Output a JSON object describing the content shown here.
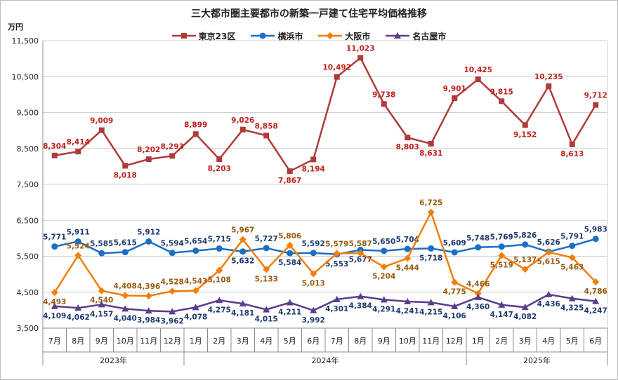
{
  "chart_data": {
    "type": "line",
    "title": "三大都市圏主要都市の新築一戸建て住宅平均価格推移",
    "ylabel": "万円",
    "xlabel": "",
    "ylim": [
      3500,
      11500
    ],
    "yticks": [
      "3,500",
      "4,500",
      "5,500",
      "6,500",
      "7,500",
      "8,500",
      "9,500",
      "10,500",
      "11,500"
    ],
    "grid": true,
    "legend_position": "top-center",
    "categories": [
      "7月",
      "8月",
      "9月",
      "10月",
      "11月",
      "12月",
      "1月",
      "2月",
      "3月",
      "4月",
      "5月",
      "6月",
      "7月",
      "8月",
      "9月",
      "10月",
      "11月",
      "12月",
      "1月",
      "2月",
      "3月",
      "4月",
      "5月",
      "6月"
    ],
    "year_groups": [
      {
        "label": "2023年",
        "start": 0,
        "end": 5
      },
      {
        "label": "2024年",
        "start": 6,
        "end": 17
      },
      {
        "label": "2025年",
        "start": 18,
        "end": 23
      }
    ],
    "series": [
      {
        "name": "東京23区",
        "color": "#b03a3a",
        "marker": "square",
        "label_color": "#c0201c",
        "values": [
          8304,
          8414,
          9009,
          8018,
          8202,
          8293,
          8899,
          8203,
          9026,
          8858,
          7867,
          8194,
          10492,
          11023,
          9738,
          8803,
          8631,
          9901,
          10425,
          9815,
          9152,
          10235,
          8613,
          9712
        ],
        "labels": [
          "8,304",
          "8,414",
          "9,009",
          "8,018",
          "8,202",
          "8,293",
          "8,899",
          "8,203",
          "9,026",
          "8,858",
          "7,867",
          "8,194",
          "10,492",
          "11,023",
          "9,738",
          "8,803",
          "8,631",
          "9,901",
          "10,425",
          "9,815",
          "9,152",
          "10,235",
          "8,613",
          "9,712"
        ],
        "label_pos": [
          "a",
          "a",
          "a",
          "b",
          "a",
          "a",
          "a",
          "b",
          "a",
          "a",
          "b",
          "b",
          "a",
          "a",
          "a",
          "b",
          "b",
          "a",
          "a",
          "a",
          "b",
          "a",
          "b",
          "a"
        ]
      },
      {
        "name": "横浜市",
        "color": "#1a6fc4",
        "marker": "circle",
        "label_color": "#1f3a6e",
        "values": [
          5771,
          5911,
          5585,
          5615,
          5912,
          5594,
          5654,
          5715,
          5632,
          5727,
          5584,
          5592,
          5553,
          5677,
          5650,
          5704,
          5718,
          5609,
          5748,
          5769,
          5826,
          5626,
          5791,
          5983
        ],
        "labels": [
          "5,771",
          "5,911",
          "5,585",
          "5,615",
          "5,912",
          "5,594",
          "5,654",
          "5,715",
          "5,632",
          "5,727",
          "5,584",
          "5,592",
          "5,553",
          "5,677",
          "5,650",
          "5,704",
          "5,718",
          "5,609",
          "5,748",
          "5,769",
          "5,826",
          "5,626",
          "5,791",
          "5,983"
        ],
        "label_pos": [
          "a",
          "a",
          "a",
          "a",
          "a",
          "a",
          "a",
          "a",
          "b",
          "a",
          "b",
          "a",
          "b",
          "b",
          "a",
          "a",
          "b",
          "a",
          "a",
          "a",
          "a",
          "a",
          "a",
          "a"
        ]
      },
      {
        "name": "大阪市",
        "color": "#f07f0a",
        "marker": "diamond",
        "label_color": "#9a5a10",
        "values": [
          4493,
          5524,
          4540,
          4408,
          4396,
          4528,
          4543,
          5108,
          5967,
          5133,
          5806,
          5013,
          5579,
          5587,
          5204,
          5444,
          6725,
          4775,
          4466,
          5519,
          5137,
          5615,
          5463,
          4786
        ],
        "labels": [
          "4,493",
          "5,524",
          "4,540",
          "4,408",
          "4,396",
          "4,528",
          "4,543",
          "5,108",
          "5,967",
          "5,133",
          "5,806",
          "5,013",
          "5,579",
          "5,587",
          "5,204",
          "5,444",
          "6,725",
          "4,775",
          "4,466",
          "5,519",
          "5,137",
          "5,615",
          "5,463",
          "4,786"
        ],
        "label_pos": [
          "b",
          "a",
          "b",
          "a",
          "a",
          "a",
          "a",
          "b",
          "a",
          "b",
          "a",
          "b",
          "a",
          "a",
          "b",
          "b",
          "a",
          "b",
          "a",
          "b",
          "a",
          "b",
          "b",
          "b"
        ]
      },
      {
        "name": "名古屋市",
        "color": "#5b3d8c",
        "marker": "triangle",
        "label_color": "#1f3a6e",
        "values": [
          4109,
          4062,
          4157,
          4040,
          3984,
          3962,
          4078,
          4275,
          4181,
          4015,
          4211,
          3992,
          4301,
          4384,
          4291,
          4241,
          4215,
          4106,
          4360,
          4147,
          4082,
          4436,
          4325,
          4247
        ],
        "labels": [
          "4,109",
          "4,062",
          "4,157",
          "4,040",
          "3,984",
          "3,962",
          "4,078",
          "4,275",
          "4,181",
          "4,015",
          "4,211",
          "3,992",
          "4,301",
          "4,384",
          "4,291",
          "4,241",
          "4,215",
          "4,106",
          "4,360",
          "4,147",
          "4,082",
          "4,436",
          "4,325",
          "4,247"
        ],
        "label_pos": [
          "b",
          "b",
          "b",
          "b",
          "b",
          "b",
          "b",
          "b",
          "b",
          "b",
          "b",
          "b",
          "b",
          "b",
          "b",
          "b",
          "b",
          "b",
          "b",
          "b",
          "b",
          "b",
          "b",
          "b"
        ]
      }
    ]
  }
}
